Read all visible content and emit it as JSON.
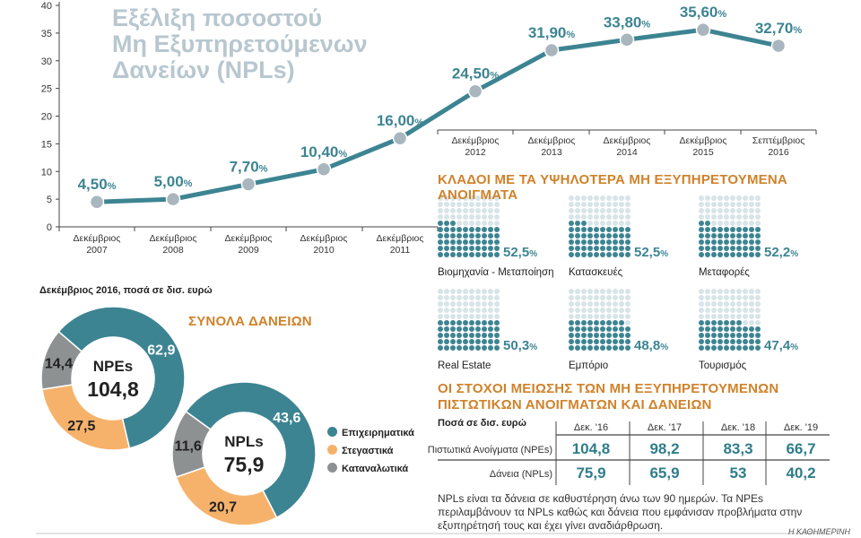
{
  "title": "Εξέλιξη ποσοστού\nΜη Εξυπηρετούμενων\nΔανείων (NPLs)",
  "colors": {
    "teal": "#3d8492",
    "orange": "#f6b26b",
    "grey": "#8e9192",
    "line": "#3d8492",
    "marker": "#a9b6be",
    "accent": "#d0822a"
  },
  "chart_data": [
    {
      "type": "line",
      "title": "Εξέλιξη ποσοστού Μη Εξυπηρετούμενων Δανείων (NPLs)",
      "categories": [
        "Δεκέμβριος 2007",
        "Δεκέμβριος 2008",
        "Δεκέμβριος 2009",
        "Δεκέμβριος 2010",
        "Δεκέμβριος 2011",
        "Δεκέμβριος 2012",
        "Δεκέμβριος 2013",
        "Δεκέμβριος 2014",
        "Δεκέμβριος 2015",
        "Σεπτέμβριος 2016"
      ],
      "cat_line1": [
        "Δεκέμβριος",
        "Δεκέμβριος",
        "Δεκέμβριος",
        "Δεκέμβριος",
        "Δεκέμβριος",
        "Δεκέμβριος",
        "Δεκέμβριος",
        "Δεκέμβριος",
        "Δεκέμβριος",
        "Σεπτέμβριος"
      ],
      "cat_line2": [
        "2007",
        "2008",
        "2009",
        "2010",
        "2011",
        "2012",
        "2013",
        "2014",
        "2015",
        "2016"
      ],
      "values": [
        4.5,
        5.0,
        7.7,
        10.4,
        16.0,
        24.5,
        31.9,
        33.8,
        35.6,
        32.7
      ],
      "value_labels": [
        "4,50",
        "5,00",
        "7,70",
        "10,40",
        "16,00",
        "24,50",
        "31,90",
        "33,80",
        "35,60",
        "32,70"
      ],
      "unit": "%",
      "ylim": [
        0,
        40
      ],
      "yticks": [
        0,
        5,
        10,
        15,
        20,
        25,
        30,
        35,
        40
      ]
    },
    {
      "type": "pie",
      "title": "NPEs",
      "total": "104,8",
      "labels": [
        "Επιχειρηματικά",
        "Στεγαστικά",
        "Καταναλωτικά"
      ],
      "values": [
        62.9,
        27.5,
        14.4
      ],
      "value_labels": [
        "62,9",
        "27,5",
        "14,4"
      ]
    },
    {
      "type": "pie",
      "title": "NPLs",
      "total": "75,9",
      "labels": [
        "Επιχειρηματικά",
        "Στεγαστικά",
        "Καταναλωτικά"
      ],
      "values": [
        43.6,
        20.7,
        11.6
      ],
      "value_labels": [
        "43,6",
        "20,7",
        "11,6"
      ]
    },
    {
      "type": "bar",
      "title": "ΚΛΑΔΟΙ ΜΕ ΤΑ ΥΨΗΛΟΤΕΡΑ ΜΗ ΕΞΥΠΗΡΕΤΟΥΜΕΝΑ ΑΝΟΙΓΜΑΤΑ",
      "categories": [
        "Βιομηχανία - Μεταποίηση",
        "Κατασκευές",
        "Μεταφορές",
        "Real Estate",
        "Εμπόριο",
        "Τουρισμός"
      ],
      "values": [
        52.5,
        52.5,
        52.2,
        50.3,
        48.8,
        47.4
      ],
      "value_labels": [
        "52,5",
        "52,5",
        "52,2",
        "50,3",
        "48,8",
        "47,4"
      ],
      "unit": "%"
    },
    {
      "type": "table",
      "title": "ΟΙ ΣΤΟΧΟΙ ΜΕΙΩΣΗΣ ΤΩΝ ΜΗ ΕΞΥΠΗΡΕΤΟΥΜΕΝΩΝ ΠΙΣΤΩΤΙΚΩΝ ΑΝΟΙΓΜΑΤΩΝ ΚΑΙ ΔΑΝΕΙΩΝ",
      "subtitle": "Ποσά σε δισ. ευρώ",
      "columns": [
        "Δεκ. '16",
        "Δεκ. '17",
        "Δεκ. '18",
        "Δεκ. '19"
      ],
      "rows": [
        {
          "label": "Πιστωτικά Ανοίγματα (NPEs)",
          "values": [
            "104,8",
            "98,2",
            "83,3",
            "66,7"
          ]
        },
        {
          "label": "Δάνεια (NPLs)",
          "values": [
            "75,9",
            "65,9",
            "53",
            "40,2"
          ]
        }
      ]
    }
  ],
  "donut_section": {
    "subtitle": "Δεκέμβριος 2016, ποσά σε δισ. ευρώ",
    "title": "ΣΥΝΟΛΑ ΔΑΝΕΙΩΝ",
    "legend": [
      "Επιχειρηματικά",
      "Στεγαστικά",
      "Καταναλωτικά"
    ]
  },
  "sectors_title": "ΚΛΑΔΟΙ ΜΕ ΤΑ ΥΨΗΛΟΤΕΡΑ ΜΗ ΕΞΥΠΗΡΕΤΟΥΜΕΝΑ ΑΝΟΙΓΜΑΤΑ",
  "targets": {
    "title": "ΟΙ ΣΤΟΧΟΙ ΜΕΙΩΣΗΣ ΤΩΝ ΜΗ ΕΞΥΠΗΡΕΤΟΥΜΕΝΩΝ ΠΙΣΤΩΤΙΚΩΝ ΑΝΟΙΓΜΑΤΩΝ ΚΑΙ ΔΑΝΕΙΩΝ",
    "subtitle": "Ποσά σε δισ. ευρώ",
    "columns": [
      "Δεκ. '16",
      "Δεκ. '17",
      "Δεκ. '18",
      "Δεκ. '19"
    ],
    "row1_label": "Πιστωτικά Ανοίγματα (NPEs)",
    "row2_label": "Δάνεια (NPLs)"
  },
  "footnote": "NPLs είναι τα δάνεια σε καθυστέρηση άνω των 90 ημερών. Τα NPEs περιλαμβάνουν τα NPLs καθώς και δάνεια που εμφάνισαν προβλήματα στην εξυπηρέτησή τους και έχει γίνει αναδιάρθρωση.",
  "brand": "Η ΚΑΘΗΜΕΡΙΝΗ"
}
